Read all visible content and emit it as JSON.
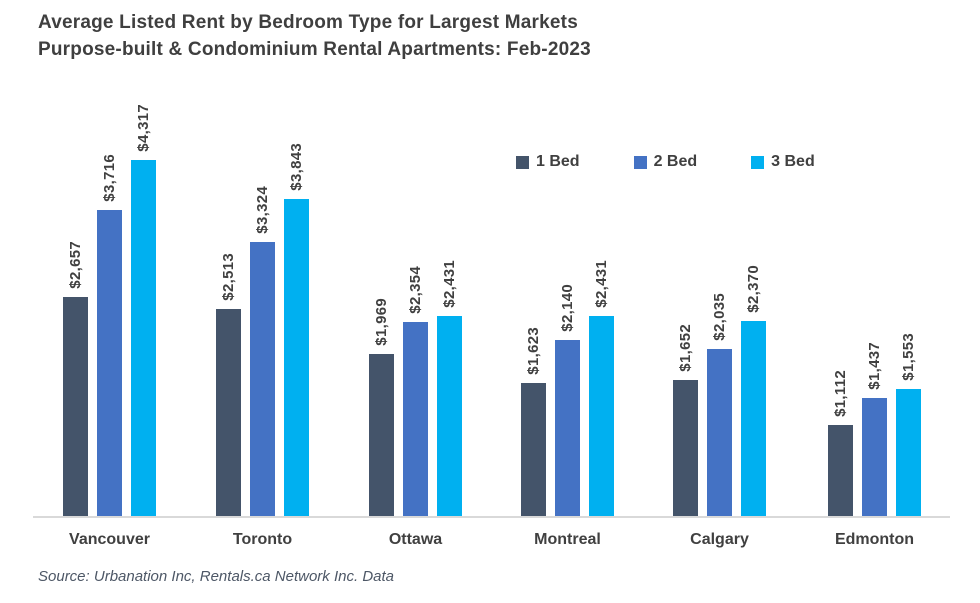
{
  "title": {
    "line1": "Average Listed Rent by Bedroom Type for Largest Markets",
    "line2": "Purpose-built & Condominium Rental Apartments: Feb-2023"
  },
  "source": "Source: Urbanation Inc, Rentals.ca Network Inc. Data",
  "chart_data": {
    "type": "bar",
    "title": "Average Listed Rent by Bedroom Type for Largest Markets Purpose-built & Condominium Rental Apartments: Feb-2023",
    "categories": [
      "Vancouver",
      "Toronto",
      "Ottawa",
      "Montreal",
      "Calgary",
      "Edmonton"
    ],
    "series": [
      {
        "name": "1 Bed",
        "color": "#44546A",
        "values": [
          2657,
          2513,
          1969,
          1623,
          1652,
          1112
        ],
        "labels": [
          "$2,657",
          "$2,513",
          "$1,969",
          "$1,623",
          "$1,652",
          "$1,112"
        ]
      },
      {
        "name": "2 Bed",
        "color": "#4472C4",
        "values": [
          3716,
          3324,
          2354,
          2140,
          2035,
          1437
        ],
        "labels": [
          "$3,716",
          "$3,324",
          "$2,354",
          "$2,140",
          "$2,035",
          "$1,437"
        ]
      },
      {
        "name": "3 Bed",
        "color": "#00B0F0",
        "values": [
          4317,
          3843,
          2431,
          2431,
          2370,
          1553
        ],
        "labels": [
          "$4,317",
          "$3,843",
          "$2,431",
          "$2,431",
          "$2,370",
          "$1,553"
        ]
      }
    ],
    "xlabel": "",
    "ylabel": "",
    "ylim": [
      0,
      4500
    ],
    "grid": false,
    "legend_position": "top-right",
    "value_label_rotation": 90,
    "text_color": "#404040",
    "axis_line_color": "#d9d9d9"
  }
}
